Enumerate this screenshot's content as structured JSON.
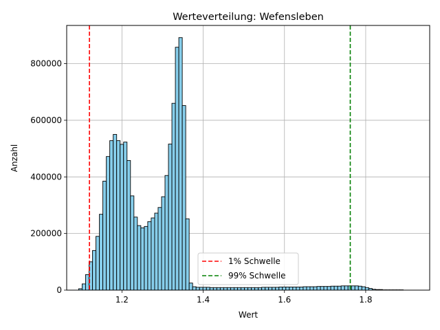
{
  "chart_data": {
    "type": "bar",
    "title": "Werteverteilung: Wefensleben",
    "xlabel": "Wert",
    "ylabel": "Anzahl",
    "xlim": [
      1.064,
      1.9575
    ],
    "ylim": [
      0,
      935000
    ],
    "xticks": [
      1.2,
      1.4,
      1.6,
      1.8
    ],
    "xtick_labels": [
      "1.2",
      "1.4",
      "1.6",
      "1.8"
    ],
    "yticks": [
      0,
      200000,
      400000,
      600000,
      800000
    ],
    "ytick_labels": [
      "0",
      "200000",
      "400000",
      "600000",
      "800000"
    ],
    "grid": true,
    "bin_start": 1.0935,
    "bin_width": 0.0085,
    "counts": [
      5000,
      22000,
      55000,
      100000,
      140000,
      190000,
      268000,
      385000,
      472000,
      528000,
      550000,
      528000,
      515000,
      523000,
      458000,
      333000,
      258000,
      228000,
      220000,
      225000,
      242000,
      255000,
      272000,
      292000,
      330000,
      405000,
      516000,
      660000,
      858000,
      892000,
      652000,
      252000,
      25000,
      12000,
      10000,
      10000,
      10000,
      10000,
      9000,
      9000,
      9000,
      9000,
      9000,
      9000,
      9000,
      9000,
      9000,
      9000,
      9000,
      9000,
      9000,
      9000,
      9000,
      10000,
      10000,
      10000,
      10000,
      10000,
      11000,
      11000,
      11000,
      11000,
      11000,
      11000,
      11000,
      12000,
      12000,
      12000,
      12000,
      13000,
      13000,
      13000,
      13000,
      14000,
      14000,
      14000,
      15000,
      15000,
      15000,
      15000,
      15000,
      14000,
      12000,
      9000,
      6000,
      3000,
      2000,
      2000,
      1000,
      1000,
      1000,
      1000,
      1000,
      1000,
      0,
      0,
      0,
      0,
      0
    ],
    "bar_color": "#87ceeb",
    "bar_edge_color": "#000000",
    "thresholds": [
      {
        "name": "1% Schwelle",
        "x": 1.12,
        "color": "#ff0000",
        "style": "dashed"
      },
      {
        "name": "99% Schwelle",
        "x": 1.762,
        "color": "#008000",
        "style": "dashed"
      }
    ],
    "legend_position": "lower-center"
  }
}
